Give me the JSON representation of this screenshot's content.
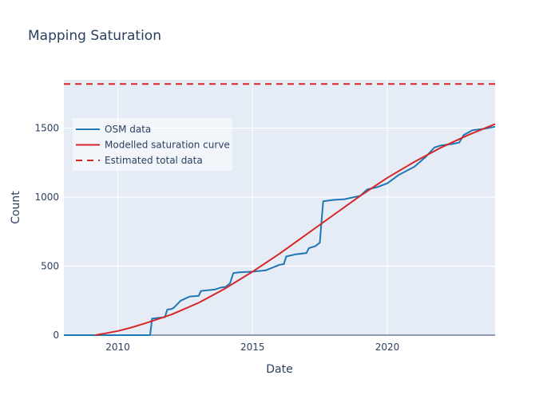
{
  "chart_data": {
    "type": "line",
    "title": "Mapping Saturation",
    "xlabel": "Date",
    "ylabel": "Count",
    "xlim": [
      "2008-01-01",
      "2024-01-01"
    ],
    "ylim": [
      0,
      1850
    ],
    "x_ticks": [
      {
        "date": "2010-01-01",
        "label": "2010"
      },
      {
        "date": "2015-01-01",
        "label": "2015"
      },
      {
        "date": "2020-01-01",
        "label": "2020"
      }
    ],
    "y_ticks": [
      0,
      500,
      1000,
      1500
    ],
    "grid": true,
    "legend_position": "top-left",
    "series": [
      {
        "name": "OSM data",
        "color": "#1f77b4",
        "dash": "solid",
        "points": [
          [
            "2008-01-01",
            0
          ],
          [
            "2011-03-15",
            0
          ],
          [
            "2011-04-10",
            120
          ],
          [
            "2011-07-01",
            125
          ],
          [
            "2011-10-01",
            130
          ],
          [
            "2011-11-01",
            185
          ],
          [
            "2012-01-01",
            190
          ],
          [
            "2012-02-01",
            200
          ],
          [
            "2012-05-01",
            250
          ],
          [
            "2012-09-01",
            280
          ],
          [
            "2013-01-01",
            285
          ],
          [
            "2013-02-01",
            320
          ],
          [
            "2013-08-01",
            330
          ],
          [
            "2013-11-01",
            345
          ],
          [
            "2014-01-01",
            350
          ],
          [
            "2014-03-01",
            375
          ],
          [
            "2014-04-15",
            450
          ],
          [
            "2014-07-01",
            455
          ],
          [
            "2015-01-01",
            460
          ],
          [
            "2015-07-01",
            470
          ],
          [
            "2016-01-01",
            510
          ],
          [
            "2016-03-01",
            515
          ],
          [
            "2016-04-01",
            570
          ],
          [
            "2016-08-01",
            585
          ],
          [
            "2017-01-01",
            595
          ],
          [
            "2017-02-01",
            630
          ],
          [
            "2017-05-01",
            645
          ],
          [
            "2017-07-01",
            670
          ],
          [
            "2017-08-15",
            970
          ],
          [
            "2018-01-01",
            980
          ],
          [
            "2018-06-01",
            985
          ],
          [
            "2019-01-01",
            1010
          ],
          [
            "2019-04-01",
            1055
          ],
          [
            "2019-09-01",
            1075
          ],
          [
            "2020-01-01",
            1100
          ],
          [
            "2020-06-01",
            1160
          ],
          [
            "2021-01-01",
            1220
          ],
          [
            "2021-06-01",
            1290
          ],
          [
            "2021-10-01",
            1360
          ],
          [
            "2022-01-01",
            1375
          ],
          [
            "2022-06-01",
            1385
          ],
          [
            "2022-09-01",
            1395
          ],
          [
            "2022-11-01",
            1450
          ],
          [
            "2023-03-01",
            1485
          ],
          [
            "2023-08-01",
            1495
          ],
          [
            "2024-01-01",
            1510
          ]
        ]
      },
      {
        "name": "Modelled saturation curve",
        "color": "#d62728",
        "dash": "solid",
        "points": [
          [
            "2009-03-01",
            0
          ],
          [
            "2010-01-01",
            30
          ],
          [
            "2010-07-01",
            55
          ],
          [
            "2011-01-01",
            85
          ],
          [
            "2012-01-01",
            150
          ],
          [
            "2013-01-01",
            235
          ],
          [
            "2014-01-01",
            340
          ],
          [
            "2015-01-01",
            460
          ],
          [
            "2016-01-01",
            590
          ],
          [
            "2017-01-01",
            730
          ],
          [
            "2018-01-01",
            870
          ],
          [
            "2019-01-01",
            1010
          ],
          [
            "2020-01-01",
            1140
          ],
          [
            "2021-01-01",
            1255
          ],
          [
            "2022-01-01",
            1360
          ],
          [
            "2023-01-01",
            1450
          ],
          [
            "2024-01-01",
            1530
          ]
        ]
      },
      {
        "name": "Estimated total data",
        "color": "#d62728",
        "dash": "dashed",
        "points": [
          [
            "2008-01-01",
            1820
          ],
          [
            "2024-01-01",
            1820
          ]
        ]
      }
    ]
  }
}
